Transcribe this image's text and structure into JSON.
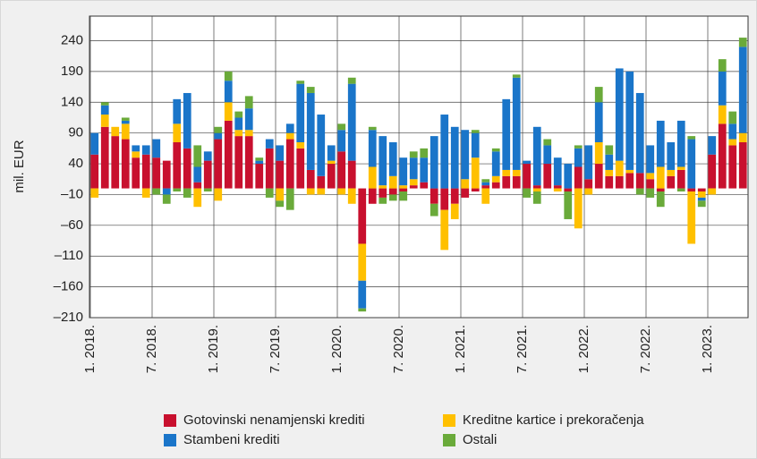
{
  "chart_data": {
    "type": "stacked_bar",
    "y_label": "mil. EUR",
    "categories": [
      "1. 2018.",
      null,
      null,
      null,
      null,
      null,
      "7. 2018.",
      null,
      null,
      null,
      null,
      null,
      "1. 2019.",
      null,
      null,
      null,
      null,
      null,
      "7. 2019.",
      null,
      null,
      null,
      null,
      null,
      "1. 2020.",
      null,
      null,
      null,
      null,
      null,
      "7. 2020.",
      null,
      null,
      null,
      null,
      null,
      "1. 2021.",
      null,
      null,
      null,
      null,
      null,
      "7. 2021.",
      null,
      null,
      null,
      null,
      null,
      "1. 2022.",
      null,
      null,
      null,
      null,
      null,
      "7. 2022.",
      null,
      null,
      null,
      null,
      null,
      "1. 2023.",
      null,
      null,
      null
    ],
    "series": [
      {
        "name": "Gotovinski nenamjenski krediti",
        "color": "#c8102e",
        "values": [
          55,
          100,
          85,
          80,
          50,
          55,
          50,
          45,
          75,
          65,
          10,
          45,
          80,
          110,
          85,
          85,
          40,
          65,
          45,
          80,
          65,
          30,
          20,
          40,
          60,
          45,
          -90,
          -25,
          -15,
          -10,
          -5,
          5,
          10,
          -25,
          -35,
          -25,
          -15,
          -5,
          5,
          10,
          20,
          20,
          40,
          5,
          40,
          5,
          -5,
          35,
          15,
          40,
          20,
          20,
          25,
          25,
          15,
          -5,
          20,
          30,
          -5,
          -5,
          55,
          105,
          70,
          75
        ]
      },
      {
        "name": "Kreditne kartice i prekoračenja",
        "color": "#ffc000",
        "values": [
          -15,
          20,
          15,
          25,
          10,
          -15,
          0,
          0,
          30,
          0,
          -30,
          0,
          -20,
          30,
          10,
          10,
          0,
          0,
          -20,
          10,
          10,
          -10,
          -10,
          5,
          -10,
          -25,
          -60,
          35,
          5,
          20,
          5,
          10,
          0,
          0,
          -65,
          -25,
          15,
          50,
          -25,
          10,
          10,
          10,
          0,
          -5,
          0,
          -5,
          0,
          -65,
          -10,
          35,
          10,
          25,
          5,
          0,
          10,
          35,
          10,
          5,
          -85,
          -10,
          -10,
          30,
          10,
          15
        ]
      },
      {
        "name": "Stambeni krediti",
        "color": "#1a75c9",
        "values": [
          35,
          15,
          0,
          5,
          10,
          15,
          30,
          -10,
          40,
          90,
          25,
          15,
          10,
          35,
          20,
          35,
          5,
          15,
          25,
          15,
          95,
          125,
          100,
          25,
          35,
          125,
          -45,
          60,
          80,
          55,
          45,
          35,
          40,
          85,
          120,
          100,
          80,
          40,
          5,
          40,
          115,
          150,
          5,
          95,
          30,
          45,
          40,
          30,
          55,
          65,
          25,
          150,
          160,
          130,
          45,
          75,
          45,
          75,
          80,
          -5,
          30,
          55,
          25,
          140
        ]
      },
      {
        "name": "Ostali",
        "color": "#6aaa3a",
        "values": [
          0,
          5,
          0,
          5,
          0,
          0,
          -10,
          -15,
          -5,
          -15,
          35,
          -5,
          10,
          15,
          10,
          20,
          5,
          -15,
          -10,
          -35,
          5,
          10,
          0,
          0,
          10,
          10,
          -5,
          5,
          -10,
          -10,
          -15,
          10,
          15,
          -20,
          0,
          0,
          0,
          5,
          5,
          5,
          0,
          5,
          -15,
          -20,
          10,
          0,
          -45,
          5,
          0,
          25,
          15,
          0,
          0,
          -10,
          -15,
          -25,
          0,
          -5,
          5,
          -10,
          0,
          20,
          20,
          15
        ]
      }
    ],
    "ylim": [
      -210,
      280
    ],
    "yticks": [
      {
        "value": -210,
        "label": "–210"
      },
      {
        "value": -160,
        "label": "–160"
      },
      {
        "value": -110,
        "label": "–110"
      },
      {
        "value": -60,
        "label": "–60"
      },
      {
        "value": -10,
        "label": "–10"
      },
      40,
      90,
      140,
      190,
      240
    ],
    "grid": true
  }
}
